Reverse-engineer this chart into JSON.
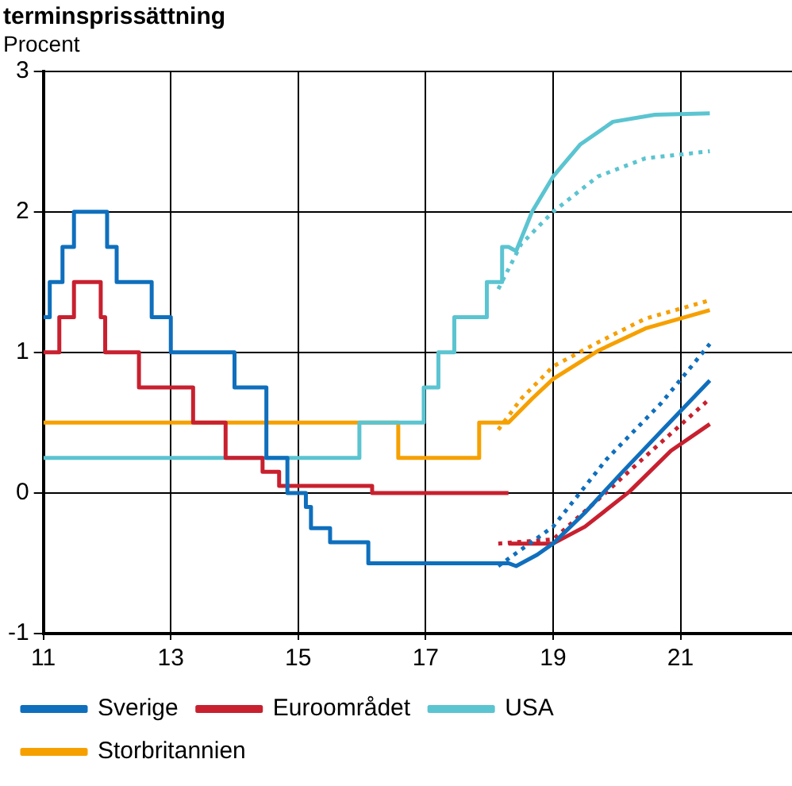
{
  "chart_data": {
    "type": "line",
    "title": "terminsprissättning",
    "ylabel": "Procent",
    "xlim": [
      11,
      22.75
    ],
    "xticks": [
      11,
      13,
      15,
      17,
      19,
      21
    ],
    "ylim": [
      -1,
      3
    ],
    "yticks": [
      -1,
      0,
      1,
      2,
      3
    ],
    "grid": true,
    "legend": "bottom",
    "marker": "none",
    "series": [
      {
        "name": "Sverige",
        "color": "#0f6fbd",
        "x": [
          11,
          11.1,
          11.1,
          11.3,
          11.3,
          11.48,
          11.48,
          12.0,
          12.0,
          12.15,
          12.15,
          12.7,
          12.7,
          13.0,
          13.0,
          14.0,
          14.0,
          14.5,
          14.5,
          14.83,
          14.83,
          15.12,
          15.12,
          15.2,
          15.2,
          15.5,
          15.5,
          16.1,
          16.1,
          18.3,
          18.42,
          18.75,
          19.0,
          19.5,
          20.09,
          20.7,
          21.46
        ],
        "values": [
          1.25,
          1.25,
          1.5,
          1.5,
          1.75,
          1.75,
          2.0,
          2.0,
          1.75,
          1.75,
          1.5,
          1.5,
          1.25,
          1.25,
          1.0,
          1.0,
          0.75,
          0.75,
          0.25,
          0.25,
          0,
          0,
          -0.1,
          -0.1,
          -0.25,
          -0.25,
          -0.35,
          -0.35,
          -0.5,
          -0.5,
          -0.52,
          -0.44,
          -0.36,
          -0.14,
          0.15,
          0.44,
          0.8
        ]
      },
      {
        "name": "Euroområdet",
        "color": "#c8202f",
        "x": [
          11,
          11.25,
          11.25,
          11.48,
          11.48,
          11.9,
          11.9,
          11.97,
          11.97,
          12.5,
          12.5,
          13.35,
          13.35,
          13.86,
          13.86,
          14.44,
          14.44,
          14.7,
          14.7,
          16.16,
          16.16,
          18.3
        ],
        "values": [
          1.0,
          1.0,
          1.25,
          1.25,
          1.5,
          1.5,
          1.25,
          1.25,
          1.0,
          1.0,
          0.75,
          0.75,
          0.5,
          0.5,
          0.25,
          0.25,
          0.15,
          0.15,
          0.05,
          0.05,
          0,
          0
        ]
      },
      {
        "name": "USA",
        "color": "#5bc4d1",
        "x": [
          11,
          15.96,
          15.96,
          16.97,
          16.97,
          17.2,
          17.2,
          17.45,
          17.45,
          17.96,
          17.96,
          18.2,
          18.2,
          18.3,
          18.42,
          18.67,
          19.0,
          19.43,
          19.94,
          20.6,
          21.46
        ],
        "values": [
          0.25,
          0.25,
          0.5,
          0.5,
          0.75,
          0.75,
          1.0,
          1.0,
          1.25,
          1.25,
          1.5,
          1.5,
          1.75,
          1.75,
          1.72,
          2.0,
          2.25,
          2.48,
          2.64,
          2.69,
          2.7
        ]
      },
      {
        "name": "Storbritannien",
        "color": "#f6a000",
        "x": [
          11,
          16.57,
          16.57,
          17.84,
          17.84,
          18.3,
          18.67,
          19.0,
          19.7,
          20.45,
          21.46
        ],
        "values": [
          0.5,
          0.5,
          0.25,
          0.25,
          0.5,
          0.5,
          0.67,
          0.81,
          1.01,
          1.17,
          1.3
        ]
      },
      {
        "color": "#0f6fbd",
        "line_style": "dotted",
        "x": [
          18.14,
          19.0,
          19.84,
          20.7,
          21.46
        ],
        "values": [
          -0.52,
          -0.24,
          0.24,
          0.64,
          1.06
        ]
      },
      {
        "color": "#c8202f",
        "x": [
          18.3,
          19.0,
          19.5,
          20.2,
          20.85,
          21.46
        ],
        "values": [
          -0.36,
          -0.36,
          -0.24,
          0.01,
          0.3,
          0.49
        ]
      },
      {
        "color": "#c8202f",
        "line_style": "dotted",
        "x": [
          18.14,
          19.0,
          19.7,
          20.45,
          21.46
        ],
        "values": [
          -0.36,
          -0.33,
          -0.05,
          0.26,
          0.67
        ]
      },
      {
        "color": "#5bc4d1",
        "line_style": "dotted",
        "x": [
          18.14,
          18.5,
          19.0,
          19.7,
          20.45,
          21.46
        ],
        "values": [
          1.45,
          1.77,
          2.0,
          2.25,
          2.38,
          2.43
        ]
      },
      {
        "color": "#f6a000",
        "line_style": "dotted",
        "x": [
          18.14,
          18.5,
          19.0,
          19.7,
          20.45,
          21.46
        ],
        "values": [
          0.45,
          0.67,
          0.9,
          1.07,
          1.24,
          1.37
        ]
      }
    ]
  }
}
